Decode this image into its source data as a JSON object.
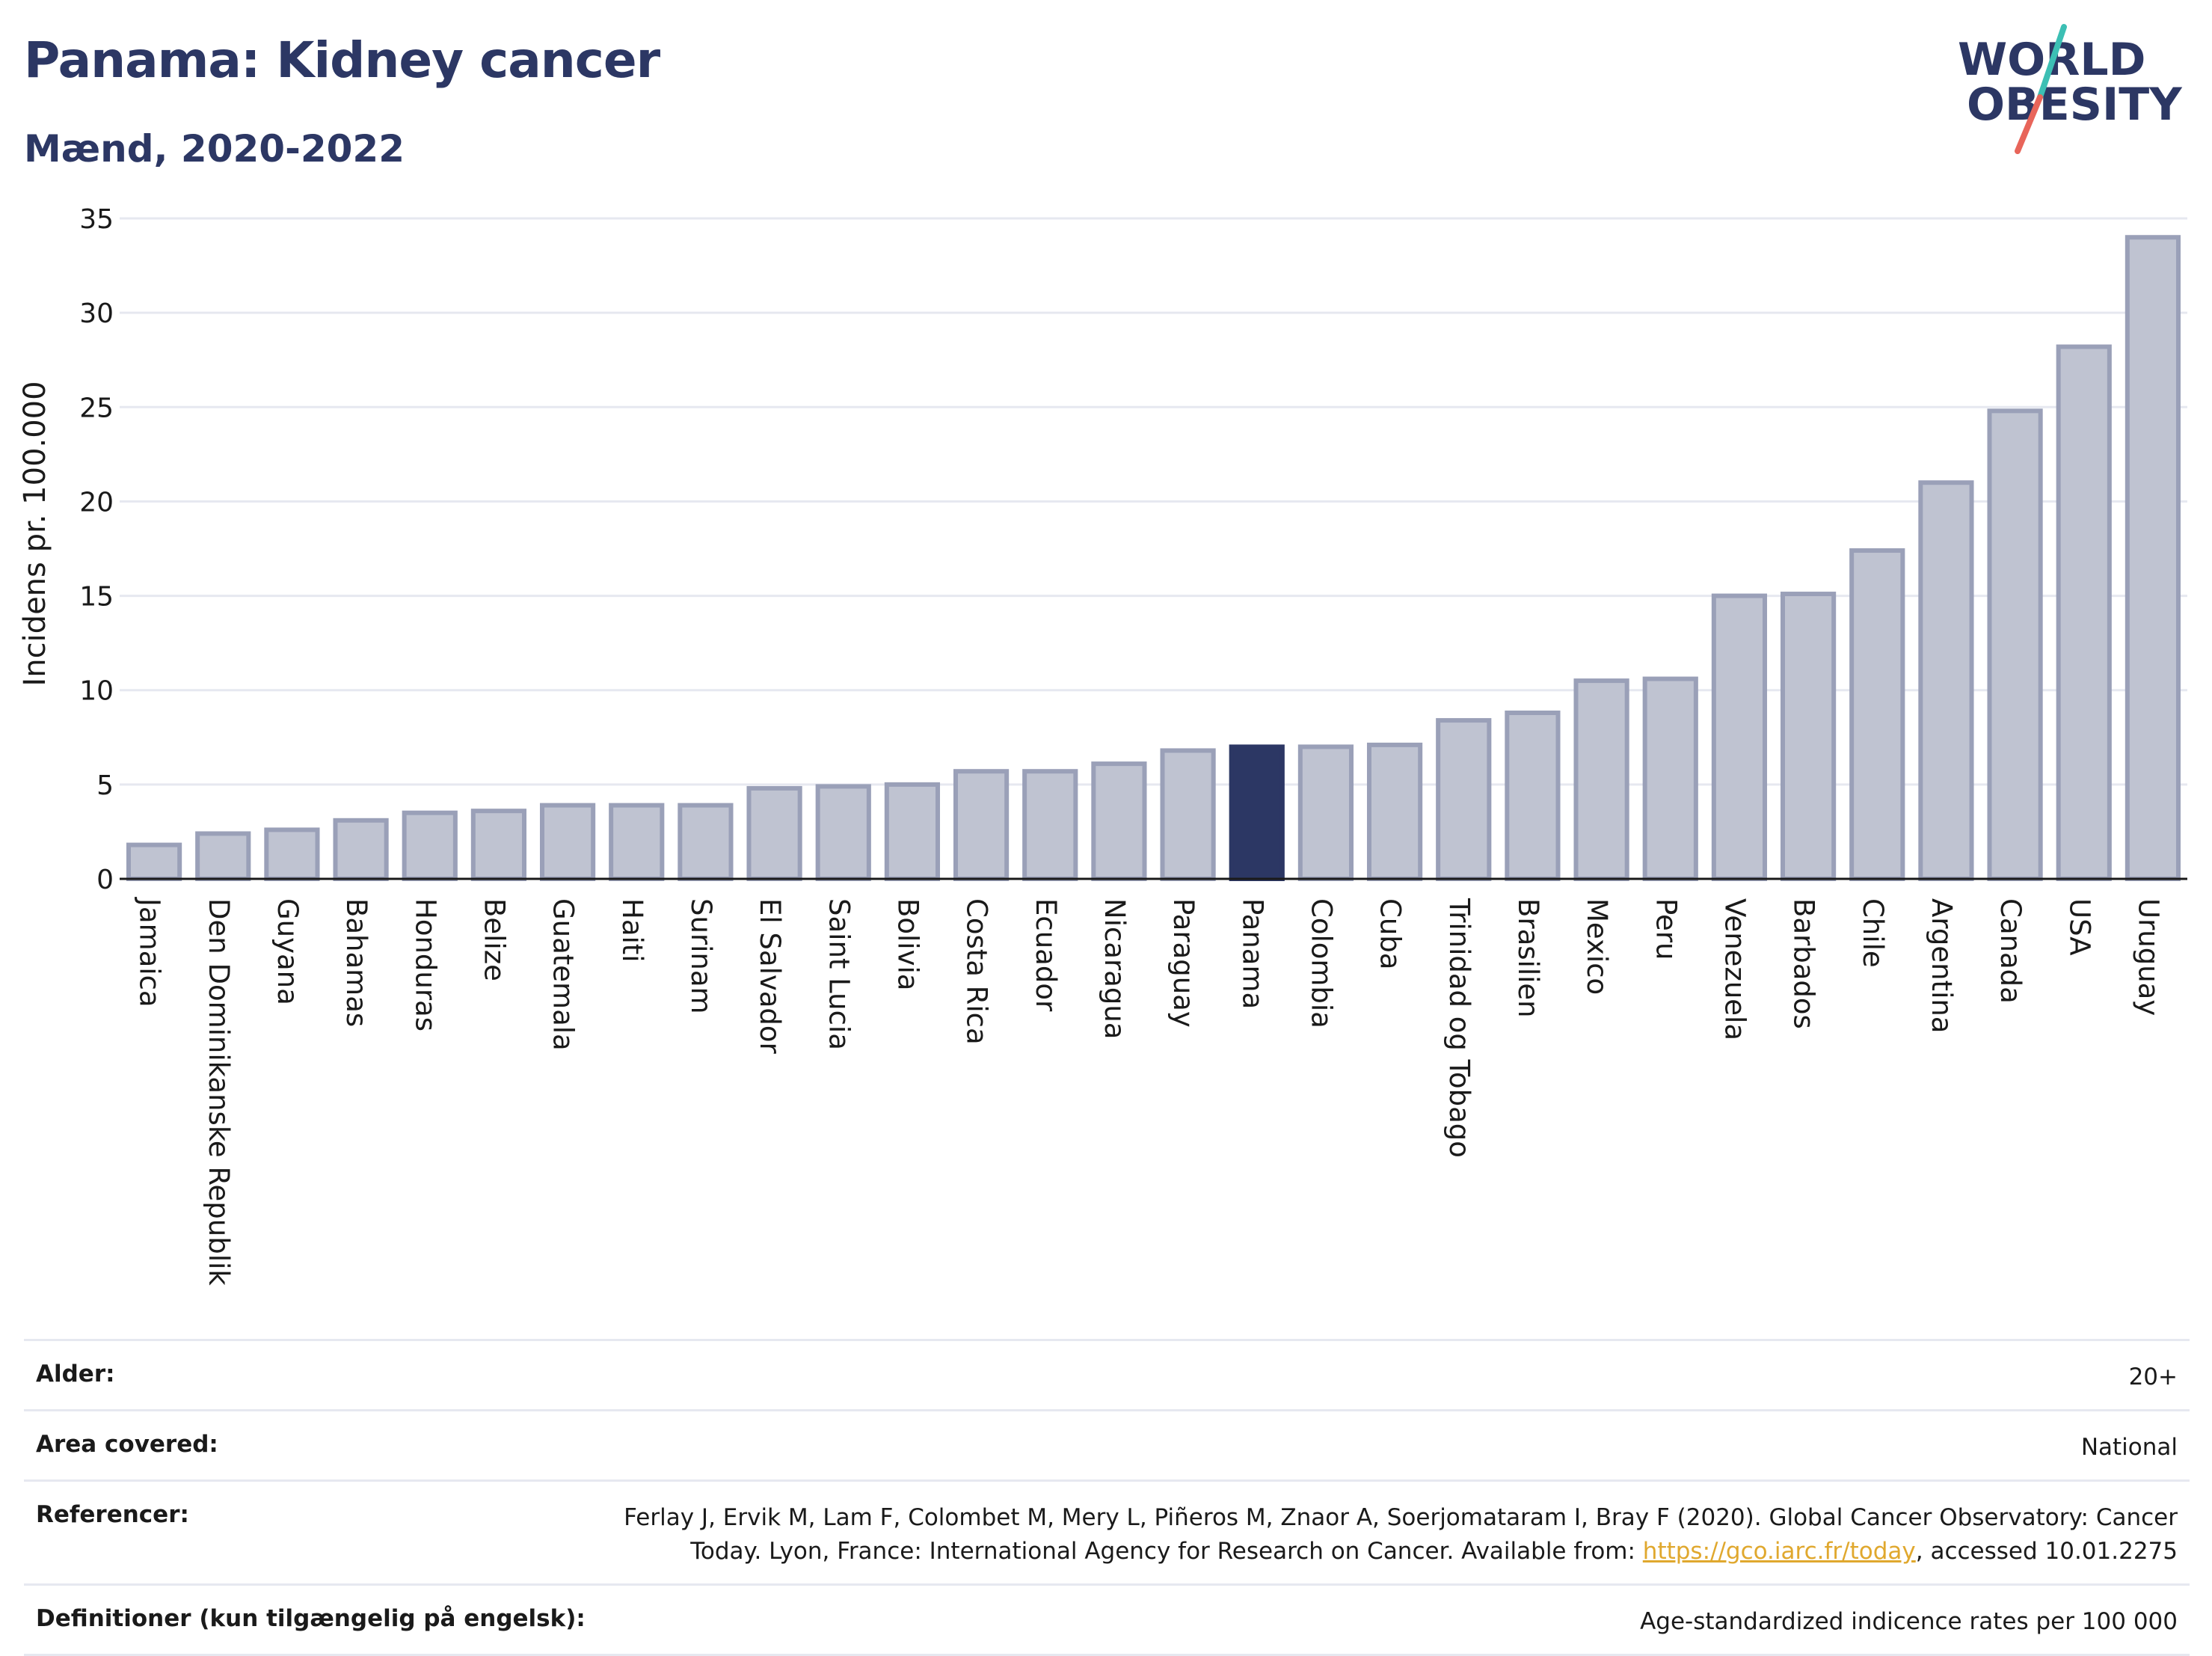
{
  "header": {
    "title": "Panama: Kidney cancer",
    "subtitle": "Mænd, 2020-2022"
  },
  "logo": {
    "line1": "WORLD",
    "line2": "OBESITY",
    "colors": {
      "text": "#2c3764",
      "slash_top": "#3cbfb4",
      "slash_bottom": "#e8655a"
    }
  },
  "colors": {
    "bar": "#bfc3d1",
    "bar_stroke": "#9aa0b8",
    "highlight": "#2c3764",
    "grid": "#e6e8f0",
    "axis": "#1a1a1a"
  },
  "chart_data": {
    "type": "bar",
    "ylabel": "Incidens pr. 100.000",
    "ylim": [
      0,
      35
    ],
    "yticks": [
      0,
      5,
      10,
      15,
      20,
      25,
      30,
      35
    ],
    "grid": true,
    "highlight": "Panama",
    "categories": [
      "Jamaica",
      "Den Dominikanske Republik",
      "Guyana",
      "Bahamas",
      "Honduras",
      "Belize",
      "Guatemala",
      "Haiti",
      "Surinam",
      "El Salvador",
      "Saint Lucia",
      "Bolivia",
      "Costa Rica",
      "Ecuador",
      "Nicaragua",
      "Paraguay",
      "Panama",
      "Colombia",
      "Cuba",
      "Trinidad og Tobago",
      "Brasilien",
      "Mexico",
      "Peru",
      "Venezuela",
      "Barbados",
      "Chile",
      "Argentina",
      "Canada",
      "USA",
      "Uruguay"
    ],
    "values": [
      1.8,
      2.4,
      2.6,
      3.1,
      3.5,
      3.6,
      3.9,
      3.9,
      3.9,
      4.8,
      4.9,
      5.0,
      5.7,
      5.7,
      6.1,
      6.8,
      7.0,
      7.0,
      7.1,
      8.4,
      8.8,
      10.5,
      10.6,
      15.0,
      15.1,
      17.4,
      21.0,
      24.8,
      28.2,
      34.0
    ]
  },
  "info": [
    {
      "key": "Alder:",
      "value": "20+"
    },
    {
      "key": "Area covered:",
      "value": "National"
    },
    {
      "key": "Referencer:",
      "value_before": "Ferlay J, Ervik M, Lam F, Colombet M, Mery L, Piñeros M, Znaor A, Soerjomataram I, Bray F (2020). Global Cancer Observatory: Cancer Today. Lyon, France: International Agency for Research on Cancer. Available from: ",
      "link": "https://gco.iarc.fr/today",
      "value_after": ", accessed 10.01.2275"
    },
    {
      "key": "Definitioner (kun tilgængelig på engelsk):",
      "value": "Age-standardized indicence rates per 100 000"
    }
  ]
}
